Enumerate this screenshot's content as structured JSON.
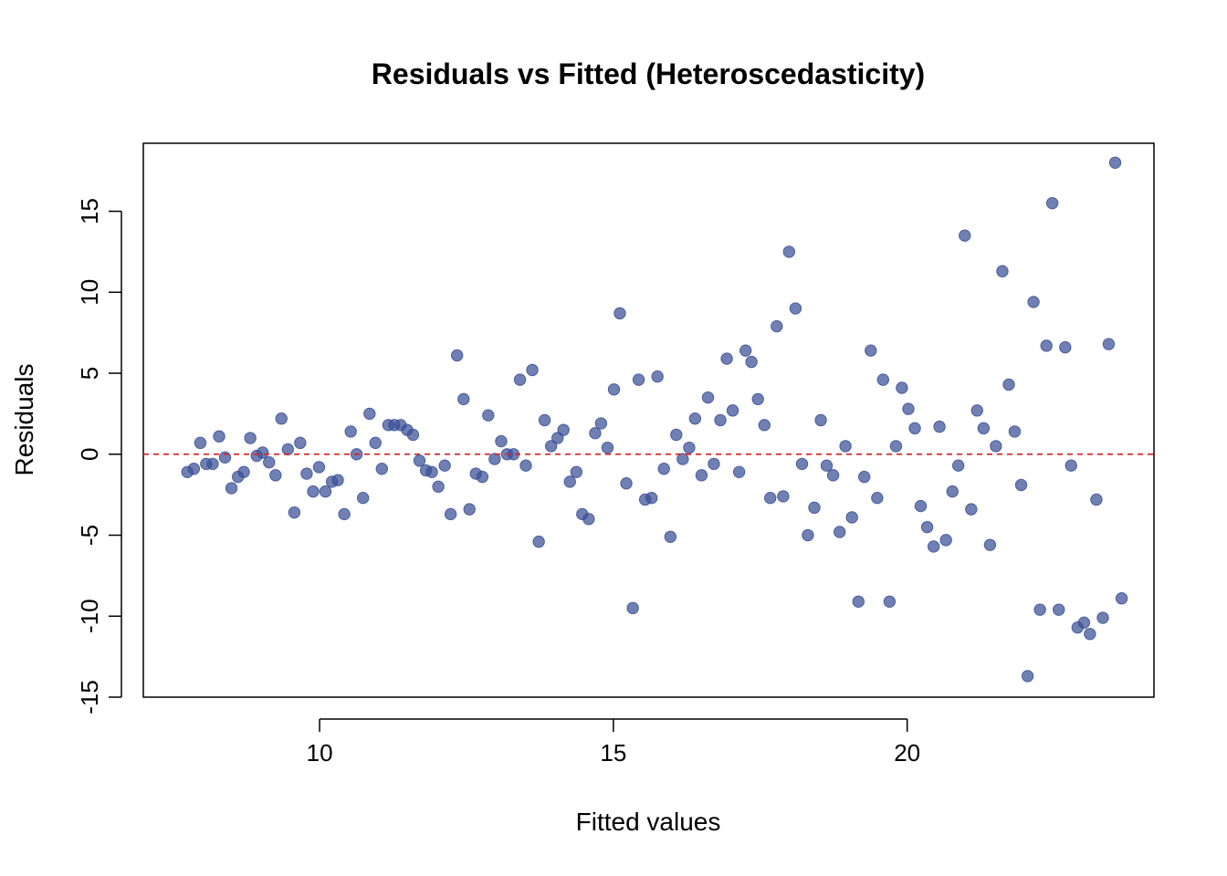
{
  "chart_data": {
    "type": "scatter",
    "title": "Residuals vs Fitted (Heteroscedasticity)",
    "xlabel": "Fitted values",
    "ylabel": "Residuals",
    "xlim": [
      7.0,
      24.2
    ],
    "ylim": [
      -15.0,
      19.2
    ],
    "x_ticks": [
      10,
      15,
      20
    ],
    "y_ticks": [
      -15,
      -10,
      -5,
      0,
      5,
      10,
      15
    ],
    "reference_line": {
      "y": 0,
      "style": "dashed",
      "color": "#d62728"
    },
    "point_color": "#3a4f95",
    "grid": false,
    "points": [
      [
        7.75,
        -1.1
      ],
      [
        7.86,
        -0.9
      ],
      [
        7.97,
        0.7
      ],
      [
        8.07,
        -0.6
      ],
      [
        8.18,
        -0.6
      ],
      [
        8.29,
        1.1
      ],
      [
        8.39,
        -0.2
      ],
      [
        8.5,
        -2.1
      ],
      [
        8.61,
        -1.4
      ],
      [
        8.71,
        -1.1
      ],
      [
        8.82,
        1.0
      ],
      [
        8.93,
        -0.1
      ],
      [
        9.03,
        0.1
      ],
      [
        9.14,
        -0.5
      ],
      [
        9.25,
        -1.3
      ],
      [
        9.35,
        2.2
      ],
      [
        9.46,
        0.3
      ],
      [
        9.57,
        -3.6
      ],
      [
        9.67,
        0.7
      ],
      [
        9.78,
        -1.2
      ],
      [
        9.89,
        -2.3
      ],
      [
        9.99,
        -0.8
      ],
      [
        10.1,
        -2.3
      ],
      [
        10.21,
        -1.7
      ],
      [
        10.31,
        -1.6
      ],
      [
        10.42,
        -3.7
      ],
      [
        10.53,
        1.4
      ],
      [
        10.63,
        0.0
      ],
      [
        10.74,
        -2.7
      ],
      [
        10.85,
        2.5
      ],
      [
        10.95,
        0.7
      ],
      [
        11.06,
        -0.9
      ],
      [
        11.17,
        1.8
      ],
      [
        11.27,
        1.8
      ],
      [
        11.38,
        1.8
      ],
      [
        11.49,
        1.5
      ],
      [
        11.59,
        1.2
      ],
      [
        11.7,
        -0.4
      ],
      [
        11.81,
        -1.0
      ],
      [
        11.91,
        -1.1
      ],
      [
        12.02,
        -2.0
      ],
      [
        12.13,
        -0.7
      ],
      [
        12.23,
        -3.7
      ],
      [
        12.34,
        6.1
      ],
      [
        12.45,
        3.4
      ],
      [
        12.55,
        -3.4
      ],
      [
        12.66,
        -1.2
      ],
      [
        12.77,
        -1.4
      ],
      [
        12.87,
        2.4
      ],
      [
        12.98,
        -0.3
      ],
      [
        13.09,
        0.8
      ],
      [
        13.19,
        0.0
      ],
      [
        13.3,
        0.0
      ],
      [
        13.41,
        4.6
      ],
      [
        13.51,
        -0.7
      ],
      [
        13.62,
        5.2
      ],
      [
        13.73,
        -5.4
      ],
      [
        13.83,
        2.1
      ],
      [
        13.94,
        0.5
      ],
      [
        14.05,
        1.0
      ],
      [
        14.15,
        1.5
      ],
      [
        14.26,
        -1.7
      ],
      [
        14.37,
        -1.1
      ],
      [
        14.47,
        -3.7
      ],
      [
        14.58,
        -4.0
      ],
      [
        14.69,
        1.3
      ],
      [
        14.79,
        1.9
      ],
      [
        14.9,
        0.4
      ],
      [
        15.01,
        4.0
      ],
      [
        15.11,
        8.7
      ],
      [
        15.22,
        -1.8
      ],
      [
        15.33,
        -9.5
      ],
      [
        15.43,
        4.6
      ],
      [
        15.54,
        -2.8
      ],
      [
        15.65,
        -2.7
      ],
      [
        15.75,
        4.8
      ],
      [
        15.86,
        -0.9
      ],
      [
        15.97,
        -5.1
      ],
      [
        16.07,
        1.2
      ],
      [
        16.18,
        -0.3
      ],
      [
        16.29,
        0.4
      ],
      [
        16.39,
        2.2
      ],
      [
        16.5,
        -1.3
      ],
      [
        16.61,
        3.5
      ],
      [
        16.71,
        -0.6
      ],
      [
        16.82,
        2.1
      ],
      [
        16.93,
        5.9
      ],
      [
        17.03,
        2.7
      ],
      [
        17.14,
        -1.1
      ],
      [
        17.25,
        6.4
      ],
      [
        17.35,
        5.7
      ],
      [
        17.46,
        3.4
      ],
      [
        17.57,
        1.8
      ],
      [
        17.67,
        -2.7
      ],
      [
        17.78,
        7.9
      ],
      [
        17.89,
        -2.6
      ],
      [
        17.99,
        12.5
      ],
      [
        18.1,
        9.0
      ],
      [
        18.21,
        -0.6
      ],
      [
        18.31,
        -5.0
      ],
      [
        18.42,
        -3.3
      ],
      [
        18.53,
        2.1
      ],
      [
        18.63,
        -0.7
      ],
      [
        18.74,
        -1.3
      ],
      [
        18.85,
        -4.8
      ],
      [
        18.95,
        0.5
      ],
      [
        19.06,
        -3.9
      ],
      [
        19.17,
        -9.1
      ],
      [
        19.27,
        -1.4
      ],
      [
        19.38,
        6.4
      ],
      [
        19.49,
        -2.7
      ],
      [
        19.59,
        4.6
      ],
      [
        19.7,
        -9.1
      ],
      [
        19.81,
        0.5
      ],
      [
        19.91,
        4.1
      ],
      [
        20.02,
        2.8
      ],
      [
        20.13,
        1.6
      ],
      [
        20.23,
        -3.2
      ],
      [
        20.34,
        -4.5
      ],
      [
        20.45,
        -5.7
      ],
      [
        20.55,
        1.7
      ],
      [
        20.66,
        -5.3
      ],
      [
        20.77,
        -2.3
      ],
      [
        20.87,
        -0.7
      ],
      [
        20.98,
        13.5
      ],
      [
        21.09,
        -3.4
      ],
      [
        21.19,
        2.7
      ],
      [
        21.3,
        1.6
      ],
      [
        21.41,
        -5.6
      ],
      [
        21.51,
        0.5
      ],
      [
        21.62,
        11.3
      ],
      [
        21.73,
        4.3
      ],
      [
        21.83,
        1.4
      ],
      [
        21.94,
        -1.9
      ],
      [
        22.05,
        -13.7
      ],
      [
        22.15,
        9.4
      ],
      [
        22.26,
        -9.6
      ],
      [
        22.37,
        6.7
      ],
      [
        22.47,
        15.5
      ],
      [
        22.58,
        -9.6
      ],
      [
        22.69,
        6.6
      ],
      [
        22.79,
        -0.7
      ],
      [
        22.9,
        -10.7
      ],
      [
        23.01,
        -10.4
      ],
      [
        23.11,
        -11.1
      ],
      [
        23.22,
        -2.8
      ],
      [
        23.33,
        -10.1
      ],
      [
        23.43,
        6.8
      ],
      [
        23.54,
        18.0
      ],
      [
        23.65,
        -8.9
      ]
    ]
  }
}
